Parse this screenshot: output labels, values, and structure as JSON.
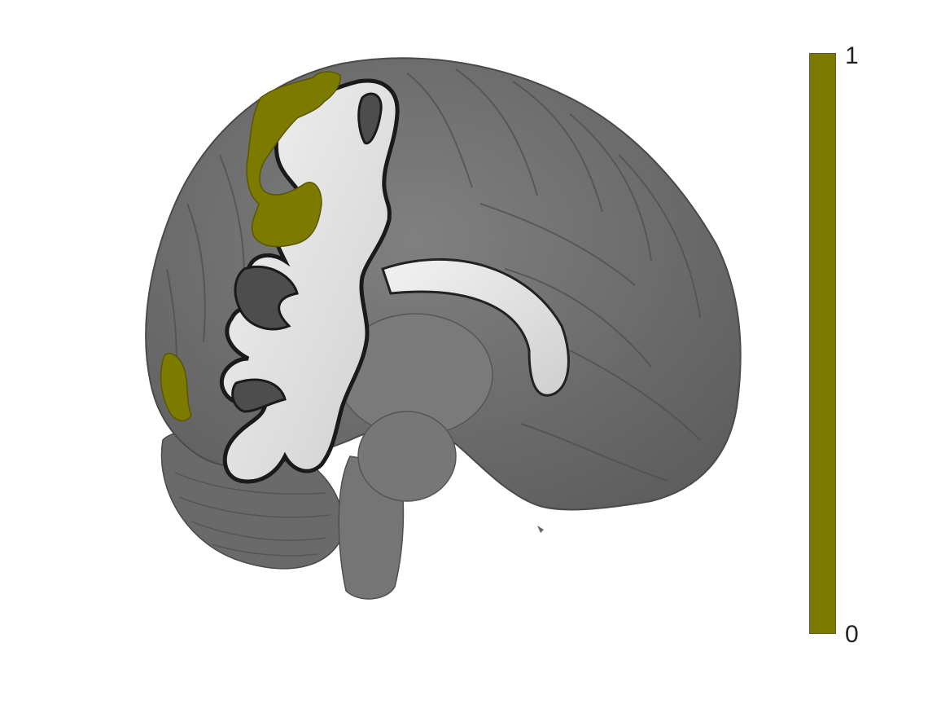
{
  "figure": {
    "overlay_color": "#7d7a00",
    "brain_color": "#6e6e6e",
    "white_matter_color": "#e6e6e6",
    "background": "#ffffff"
  },
  "colorbar": {
    "max_label": "1",
    "min_label": "0",
    "value_range": [
      0,
      1
    ],
    "fill_fraction": 1.0,
    "color": "#7d7a00"
  }
}
